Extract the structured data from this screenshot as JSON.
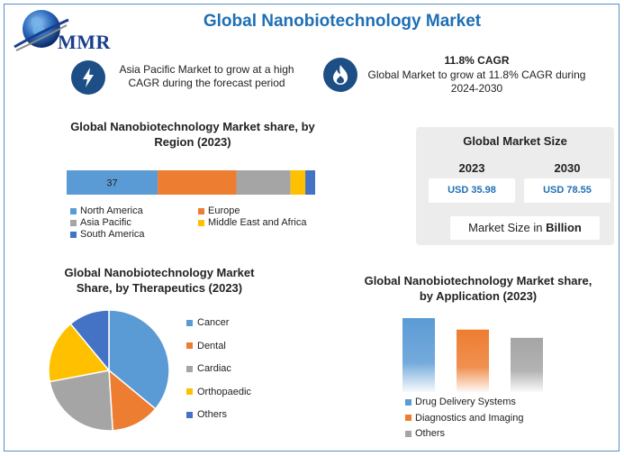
{
  "header": {
    "title": "Global Nanobiotechnology Market",
    "logo_text": "MMR"
  },
  "highlights": [
    {
      "icon": "lightning-icon",
      "text": "Asia Pacific Market to grow at a high CAGR during the forecast period"
    },
    {
      "icon": "flame-icon",
      "title": "11.8% CAGR",
      "text": "Global Market to grow at 11.8% CAGR during 2024-2030"
    }
  ],
  "colors": {
    "blue": "#5b9bd5",
    "orange": "#ed7d31",
    "gray": "#a5a5a5",
    "yellow": "#ffc000",
    "darkblue": "#4472c4",
    "title": "#1f6fb5"
  },
  "market_size": {
    "title": "Global Market Size",
    "year1": "2023",
    "value1": "USD 35.98",
    "year2": "2030",
    "value2": "USD 78.55",
    "footer_prefix": "Market Size in ",
    "footer_bold": "Billion"
  },
  "chart_data": [
    {
      "type": "bar",
      "title": "Global Nanobiotechnology Market share, by Region (2023)",
      "stacked": true,
      "orientation": "horizontal",
      "series": [
        {
          "name": "North America",
          "value": 37,
          "color": "#5b9bd5",
          "label": "37"
        },
        {
          "name": "Europe",
          "value": 32,
          "color": "#ed7d31"
        },
        {
          "name": "Asia Pacific",
          "value": 22,
          "color": "#a5a5a5"
        },
        {
          "name": "Middle East and Africa",
          "value": 6,
          "color": "#ffc000"
        },
        {
          "name": "South America",
          "value": 4,
          "color": "#4472c4"
        }
      ],
      "legend_position": "bottom"
    },
    {
      "type": "pie",
      "title": "Global Nanobiotechnology Market Share, by Therapeutics (2023)",
      "slices": [
        {
          "name": "Cancer",
          "value": 36,
          "color": "#5b9bd5"
        },
        {
          "name": "Dental",
          "value": 13,
          "color": "#ed7d31"
        },
        {
          "name": "Cardiac",
          "value": 23,
          "color": "#a5a5a5"
        },
        {
          "name": "Orthopaedic",
          "value": 17,
          "color": "#ffc000"
        },
        {
          "name": "Others",
          "value": 11,
          "color": "#4472c4"
        }
      ],
      "legend_position": "right"
    },
    {
      "type": "bar",
      "title": "Global Nanobiotechnology Market share, by Application (2023)",
      "categories": [
        "Drug Delivery Systems",
        "Diagnostics and Imaging",
        "Others"
      ],
      "values": [
        45,
        38,
        33
      ],
      "colors": [
        "#5b9bd5",
        "#ed7d31",
        "#a5a5a5"
      ],
      "legend_position": "bottom"
    }
  ]
}
